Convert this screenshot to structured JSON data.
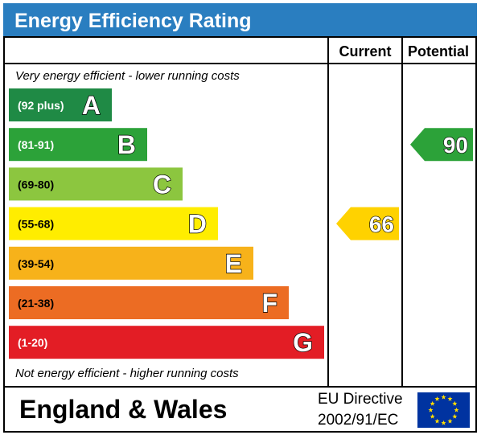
{
  "title": "Energy Efficiency Rating",
  "columns": {
    "current": "Current",
    "potential": "Potential"
  },
  "top_note": "Very energy efficient - lower running costs",
  "bottom_note": "Not energy efficient - higher running costs",
  "footer": {
    "region": "England & Wales",
    "directive_line1": "EU Directive",
    "directive_line2": "2002/91/EC"
  },
  "colors": {
    "header": "#2a7ec0",
    "eu_flag": "#0033a0",
    "eu_stars": "#ffdd00"
  },
  "chart_data": {
    "type": "bar",
    "categories": [
      "A",
      "B",
      "C",
      "D",
      "E",
      "F",
      "G"
    ],
    "ranges": [
      "(92 plus)",
      "(81-91)",
      "(69-80)",
      "(55-68)",
      "(39-54)",
      "(21-38)",
      "(1-20)"
    ],
    "band_colors": [
      "#1f8a45",
      "#2ca239",
      "#8cc63f",
      "#ffed00",
      "#f7b21a",
      "#ec6c23",
      "#e31d25"
    ],
    "range_text_colors": [
      "#ffffff",
      "#ffffff",
      "#000000",
      "#000000",
      "#000000",
      "#000000",
      "#ffffff"
    ],
    "current": {
      "value": 66,
      "band": "D",
      "color": "#ffd200"
    },
    "potential": {
      "value": 90,
      "band": "B",
      "color": "#2ca239"
    }
  }
}
